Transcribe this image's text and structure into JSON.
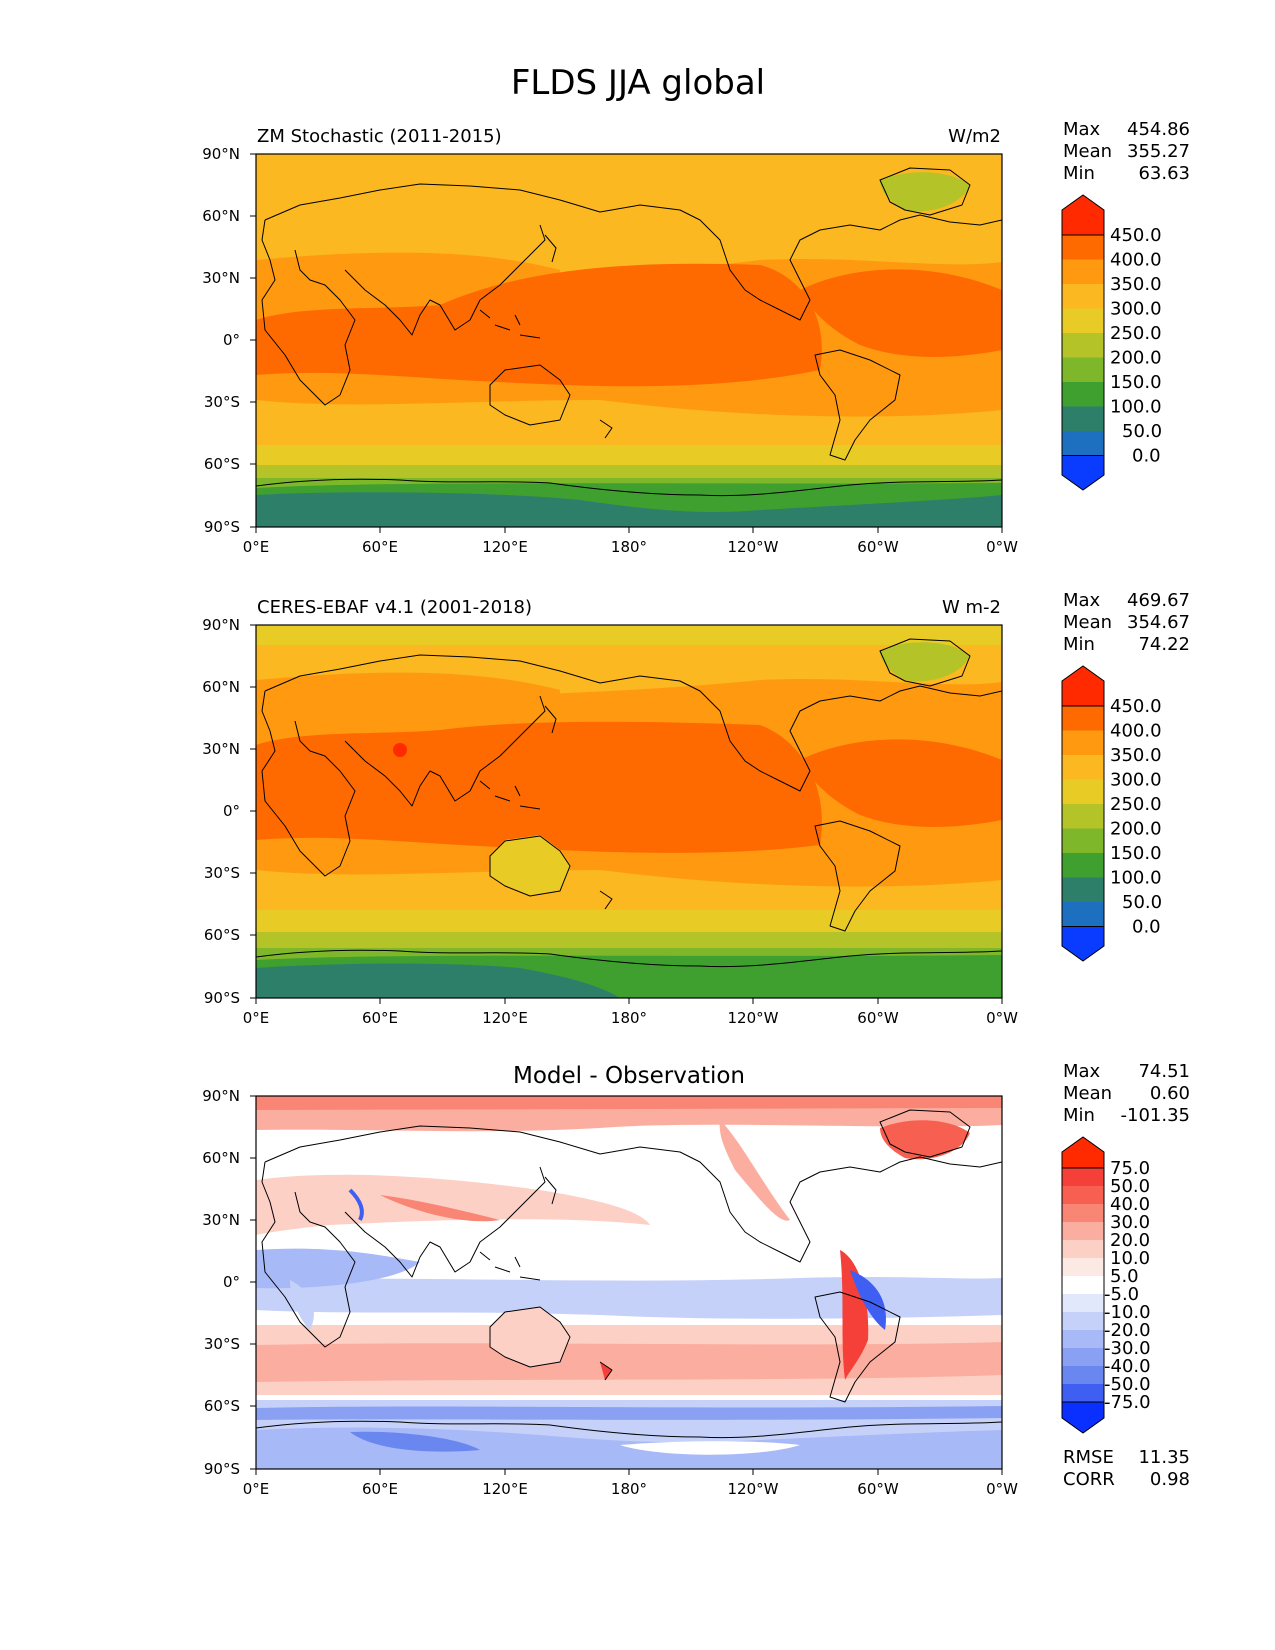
{
  "figure_title": "FLDS JJA global",
  "axes": {
    "lat_ticks": [
      "90°N",
      "60°N",
      "30°N",
      "0°",
      "30°S",
      "60°S",
      "90°S"
    ],
    "lon_ticks": [
      "0°E",
      "60°E",
      "120°E",
      "180°",
      "120°W",
      "60°W",
      "0°W"
    ]
  },
  "panels": [
    {
      "title": "ZM Stochastic (2011-2015)",
      "units": "W/m2",
      "stats": [
        {
          "label": "Max",
          "value": "454.86"
        },
        {
          "label": "Mean",
          "value": "355.27"
        },
        {
          "label": "Min",
          "value": "63.63"
        }
      ],
      "colorbar_labels": [
        "450.0",
        "400.0",
        "350.0",
        "300.0",
        "250.0",
        "200.0",
        "150.0",
        "100.0",
        "50.0",
        "0.0"
      ]
    },
    {
      "title": "CERES-EBAF v4.1 (2001-2018)",
      "units": "W m-2",
      "stats": [
        {
          "label": "Max",
          "value": "469.67"
        },
        {
          "label": "Mean",
          "value": "354.67"
        },
        {
          "label": "Min",
          "value": "74.22"
        }
      ],
      "colorbar_labels": [
        "450.0",
        "400.0",
        "350.0",
        "300.0",
        "250.0",
        "200.0",
        "150.0",
        "100.0",
        "50.0",
        "0.0"
      ]
    },
    {
      "title": "Model - Observation",
      "units": "",
      "stats": [
        {
          "label": "Max",
          "value": "74.51"
        },
        {
          "label": "Mean",
          "value": "0.60"
        },
        {
          "label": "Min",
          "value": "-101.35"
        }
      ],
      "colorbar_labels": [
        "75.0",
        "50.0",
        "40.0",
        "30.0",
        "20.0",
        "10.0",
        "5.0",
        "-5.0",
        "-10.0",
        "-20.0",
        "-30.0",
        "-40.0",
        "-50.0",
        "-75.0"
      ],
      "metrics": [
        {
          "label": "RMSE",
          "value": "11.35"
        },
        {
          "label": "CORR",
          "value": "0.98"
        }
      ]
    }
  ],
  "colors": {
    "abs_scale": [
      "#ff2a00",
      "#ff6a00",
      "#ff9a10",
      "#fbb820",
      "#e8cc25",
      "#b4c428",
      "#7eb82a",
      "#3fa030",
      "#2e7f6a",
      "#1d6fc0",
      "#0a3cff"
    ],
    "diff_scale": [
      "#ff2a00",
      "#f5403a",
      "#f76050",
      "#f98575",
      "#fbaea0",
      "#fdd0c6",
      "#fde9e4",
      "#ffffff",
      "#e2e8fb",
      "#c6d1fa",
      "#a8b9f7",
      "#8aa0f3",
      "#6a86ef",
      "#3e5ff2",
      "#0a30ff"
    ]
  }
}
